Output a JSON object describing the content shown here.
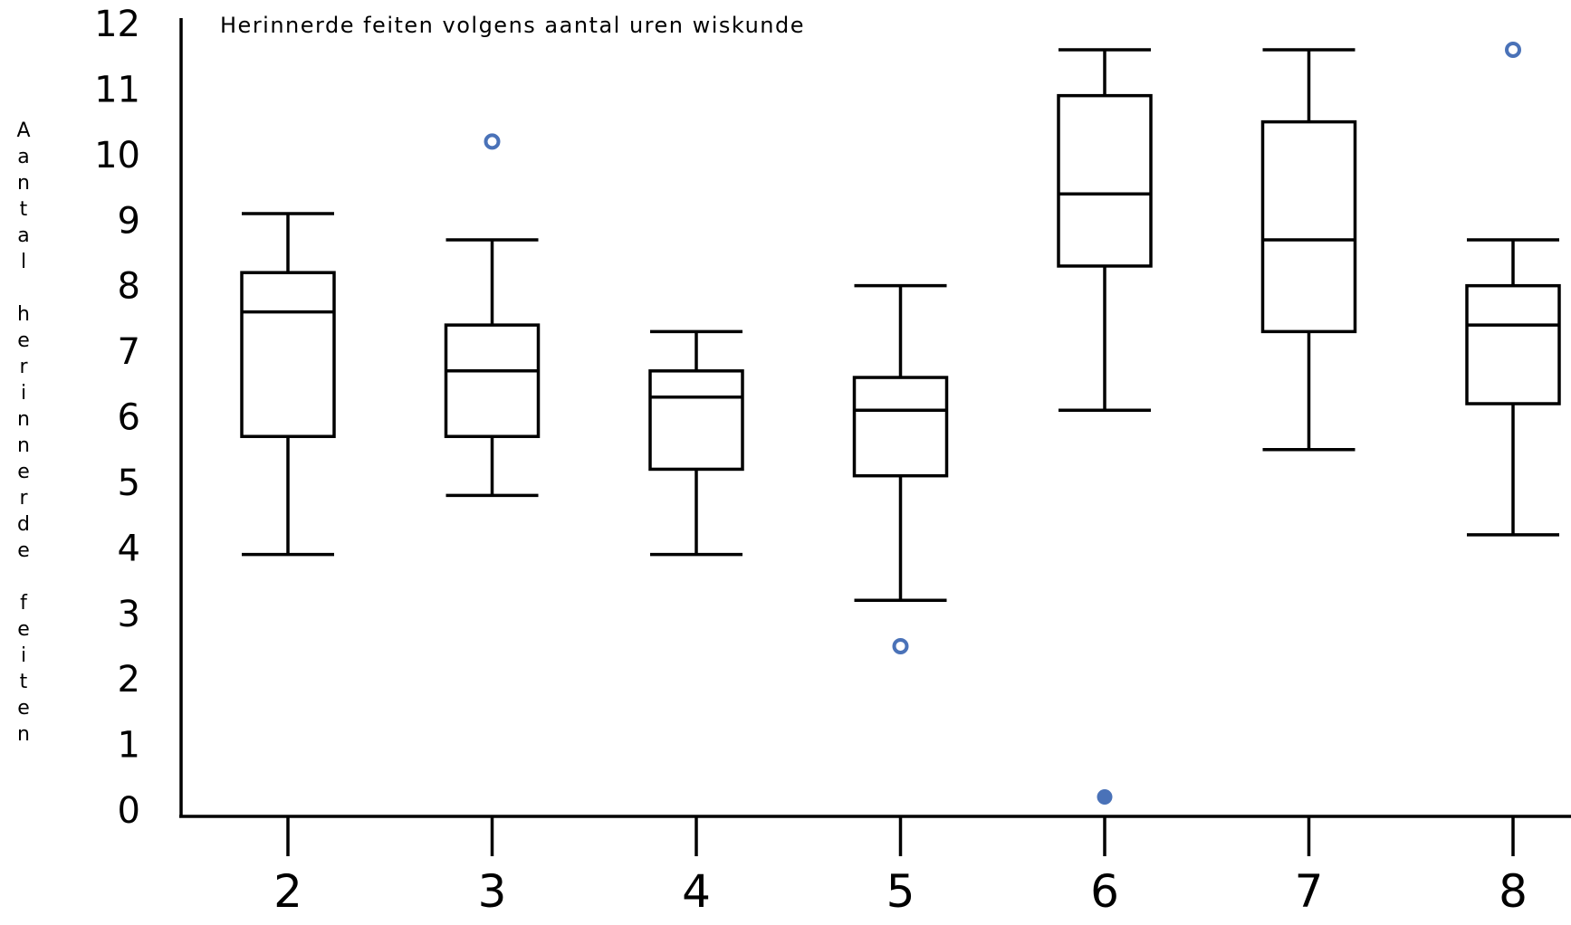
{
  "chart_data": {
    "type": "boxplot",
    "title": "Herinnerde feiten volgens aantal uren wiskunde",
    "xlabel": "",
    "ylabel": "Aantal herinnerde feiten",
    "yticks": [
      "0",
      "1",
      "2",
      "3",
      "4",
      "5",
      "6",
      "7",
      "8",
      "9",
      "10",
      "11",
      "12"
    ],
    "ylim": [
      0,
      12
    ],
    "categories": [
      "2",
      "3",
      "4",
      "5",
      "6",
      "7",
      "8"
    ],
    "boxes": [
      {
        "category": "2",
        "whisker_low": 3.9,
        "q1": 5.7,
        "median": 7.6,
        "q3": 8.2,
        "whisker_high": 9.1
      },
      {
        "category": "3",
        "whisker_low": 4.8,
        "q1": 5.7,
        "median": 6.7,
        "q3": 7.4,
        "whisker_high": 8.7
      },
      {
        "category": "4",
        "whisker_low": 3.9,
        "q1": 5.2,
        "median": 6.3,
        "q3": 6.7,
        "whisker_high": 7.3
      },
      {
        "category": "5",
        "whisker_low": 3.2,
        "q1": 5.1,
        "median": 6.1,
        "q3": 6.6,
        "whisker_high": 8.0
      },
      {
        "category": "6",
        "whisker_low": 6.1,
        "q1": 8.3,
        "median": 9.4,
        "q3": 10.9,
        "whisker_high": 11.6
      },
      {
        "category": "7",
        "whisker_low": 5.5,
        "q1": 7.3,
        "median": 8.7,
        "q3": 10.5,
        "whisker_high": 11.6
      },
      {
        "category": "8",
        "whisker_low": 4.2,
        "q1": 6.2,
        "median": 7.4,
        "q3": 8.0,
        "whisker_high": 8.7
      }
    ],
    "outliers": [
      {
        "category": "3",
        "value": 10.2,
        "style": "open"
      },
      {
        "category": "5",
        "value": 2.5,
        "style": "open"
      },
      {
        "category": "6",
        "value": 0.2,
        "style": "filled"
      },
      {
        "category": "8",
        "value": 11.6,
        "style": "open"
      }
    ],
    "colors": {
      "box": "#000000",
      "outlier": "#4a72b8"
    },
    "grid": false,
    "legend": "none"
  }
}
